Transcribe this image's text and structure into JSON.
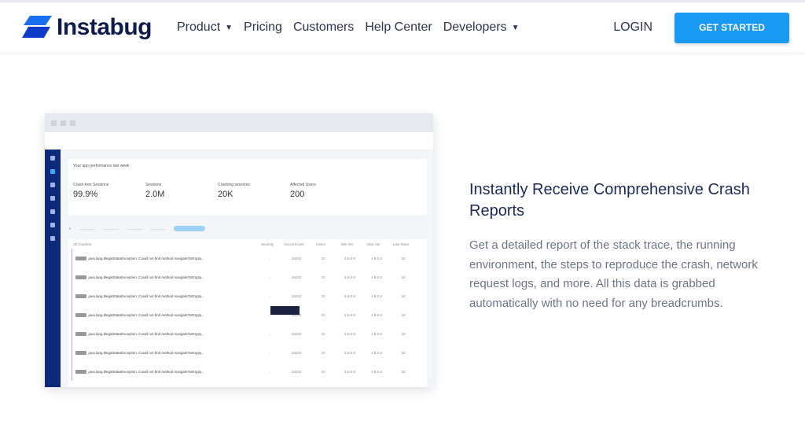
{
  "nav": {
    "brand": "Instabug",
    "items": [
      {
        "label": "Product",
        "dropdown": true
      },
      {
        "label": "Pricing"
      },
      {
        "label": "Customers"
      },
      {
        "label": "Help Center"
      },
      {
        "label": "Developers",
        "dropdown": true
      }
    ],
    "login": "LOGIN",
    "cta": "GET STARTED",
    "cta_color": "#1a9bf3"
  },
  "mockup": {
    "card_title": "Your app performance last week",
    "stats": [
      {
        "label": "Crash-free Sessions",
        "value": "99.9%"
      },
      {
        "label": "Sessions",
        "value": "2.0M"
      },
      {
        "label": "Crashing sessions",
        "value": "20K"
      },
      {
        "label": "Affected Users",
        "value": "200"
      }
    ],
    "columns": [
      "All Crashes",
      "Severity",
      "Occurrences",
      "Users",
      "Min Ver.",
      "Max Ver.",
      "Last Seen"
    ],
    "rows": [
      {
        "message": "java.lang.IllegalStateException: Could not find method navigateToEmpty...",
        "occurrences": "19152",
        "users": "31",
        "min": "4.8.0.8",
        "max": "4.8.0.8",
        "last": "4d"
      },
      {
        "message": "java.lang.IllegalStateException: Could not find method navigateToEmpty...",
        "occurrences": "19152",
        "users": "31",
        "min": "4.8.0.8",
        "max": "4.8.0.8",
        "last": "4d"
      },
      {
        "message": "java.lang.IllegalStateException: Could not find method navigateToEmpty...",
        "occurrences": "19152",
        "users": "31",
        "min": "4.8.0.8",
        "max": "4.8.0.8",
        "last": "4d"
      },
      {
        "message": "java.lang.IllegalStateException: Could not find method navigateToEmpty...",
        "occurrences": "19152",
        "users": "31",
        "min": "4.8.0.8",
        "max": "4.8.0.8",
        "last": "4d"
      },
      {
        "message": "java.lang.IllegalStateException: Could not find method navigateToEmpty...",
        "occurrences": "19152",
        "users": "31",
        "min": "4.8.0.8",
        "max": "4.8.0.8",
        "last": "4d"
      },
      {
        "message": "java.lang.IllegalStateException: Could not find method navigateToEmpty...",
        "occurrences": "19152",
        "users": "31",
        "min": "4.8.0.8",
        "max": "4.8.0.8",
        "last": "4d"
      },
      {
        "message": "java.lang.IllegalStateException: Could not find method navigateToEmpty...",
        "occurrences": "19152",
        "users": "31",
        "min": "4.8.0.8",
        "max": "4.8.0.8",
        "last": "4d"
      }
    ]
  },
  "feature": {
    "title": "Instantly Receive Comprehensive Crash Reports",
    "body": "Get a detailed report of the stack trace, the running environment, the steps to reproduce the crash, network request logs, and more. All this data is grabbed automatically with no need for any breadcrumbs."
  }
}
